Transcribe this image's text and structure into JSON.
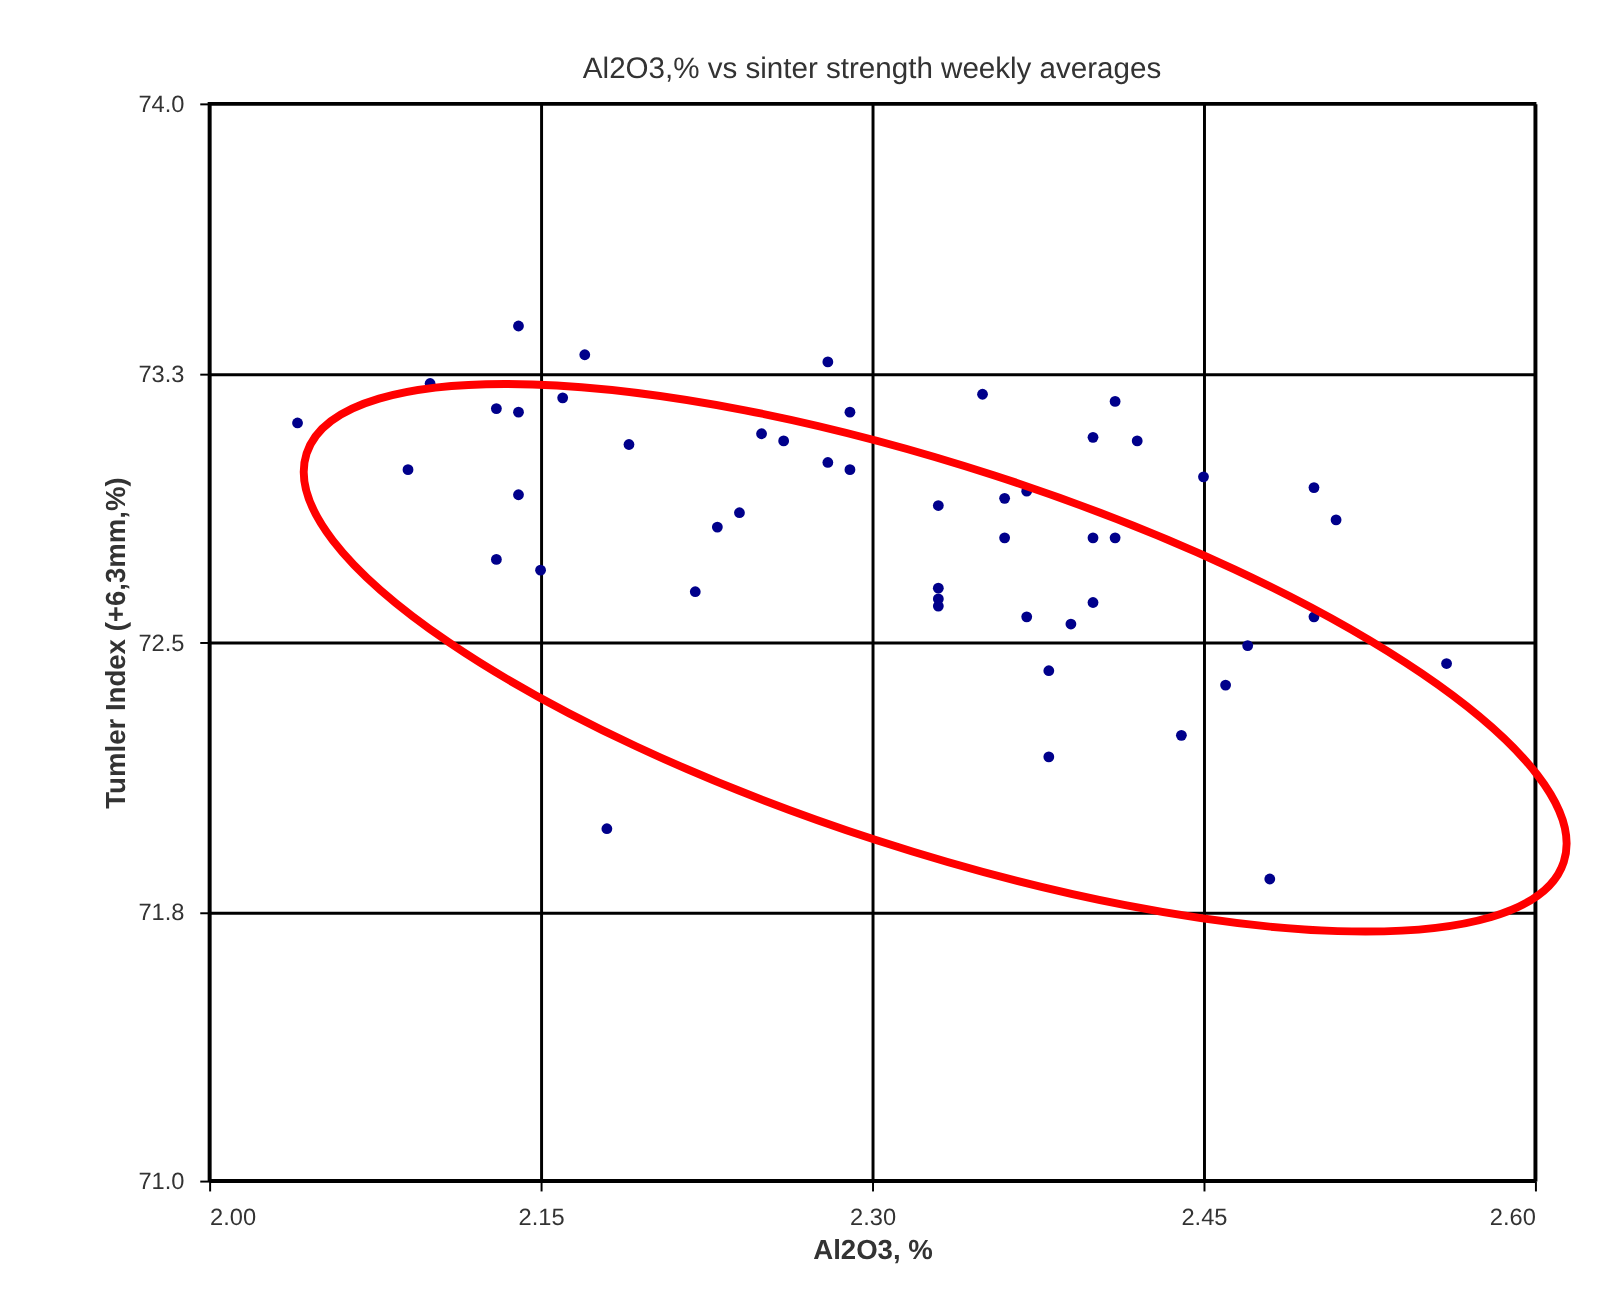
{
  "chart_data": {
    "type": "scatter",
    "title": "Al2O3,% vs  sinter strength weekly averages",
    "xlabel": "Al2O3,  %",
    "ylabel": "Tumler Index (+6,3mm,%)",
    "xlim": [
      2.0,
      2.6
    ],
    "ylim": [
      71.0,
      74.0
    ],
    "xticks": [
      {
        "value": 2.0,
        "label": "2.00"
      },
      {
        "value": 2.15,
        "label": "2.15"
      },
      {
        "value": 2.3,
        "label": "2.30"
      },
      {
        "value": 2.45,
        "label": "2.45"
      },
      {
        "value": 2.6,
        "label": "2.60"
      }
    ],
    "yticks": [
      {
        "value": 71.0,
        "label": "71.0"
      },
      {
        "value": 71.75,
        "label": "71.8"
      },
      {
        "value": 72.5,
        "label": "72.5"
      },
      {
        "value": 73.25,
        "label": "73.3"
      },
      {
        "value": 74.0,
        "label": "74.0"
      }
    ],
    "grid": true,
    "marker": "circle",
    "x": [
      2.04,
      2.1,
      2.14,
      2.17,
      2.13,
      2.14,
      2.16,
      2.09,
      2.14,
      2.13,
      2.15,
      2.19,
      2.25,
      2.26,
      2.28,
      2.29,
      2.28,
      2.29,
      2.24,
      2.23,
      2.22,
      2.18,
      2.35,
      2.41,
      2.4,
      2.42,
      2.45,
      2.33,
      2.36,
      2.37,
      2.5,
      2.51,
      2.36,
      2.4,
      2.41,
      2.33,
      2.33,
      2.33,
      2.37,
      2.39,
      2.4,
      2.5,
      2.47,
      2.56,
      2.46,
      2.38,
      2.44,
      2.38,
      2.48
    ],
    "series": [
      {
        "color": "#00008b",
        "values": [
          73.11,
          73.22,
          73.38,
          73.3,
          73.15,
          73.14,
          73.18,
          72.98,
          72.91,
          72.73,
          72.7,
          73.05,
          73.08,
          73.06,
          73.28,
          73.14,
          73.0,
          72.98,
          72.86,
          72.82,
          72.64,
          71.98,
          73.19,
          73.17,
          73.07,
          73.06,
          72.96,
          72.88,
          72.9,
          72.92,
          72.93,
          72.84,
          72.79,
          72.79,
          72.79,
          72.65,
          72.62,
          72.6,
          72.57,
          72.55,
          72.61,
          72.57,
          72.49,
          72.44,
          72.38,
          72.42,
          72.24,
          72.18,
          71.84
        ]
      }
    ]
  }
}
